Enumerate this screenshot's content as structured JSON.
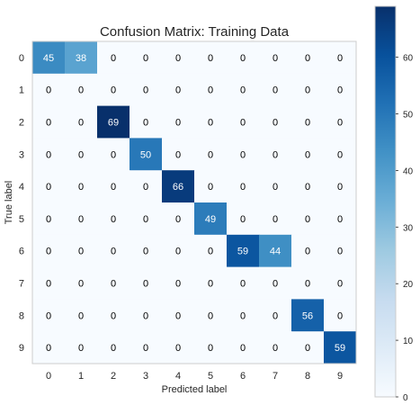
{
  "chart_data": {
    "type": "heatmap",
    "title": "Confusion Matrix: Training Data",
    "xlabel": "Predicted label",
    "ylabel": "True label",
    "x_categories": [
      "0",
      "1",
      "2",
      "3",
      "4",
      "5",
      "6",
      "7",
      "8",
      "9"
    ],
    "y_categories": [
      "0",
      "1",
      "2",
      "3",
      "4",
      "5",
      "6",
      "7",
      "8",
      "9"
    ],
    "values": [
      [
        45,
        38,
        0,
        0,
        0,
        0,
        0,
        0,
        0,
        0
      ],
      [
        0,
        0,
        0,
        0,
        0,
        0,
        0,
        0,
        0,
        0
      ],
      [
        0,
        0,
        69,
        0,
        0,
        0,
        0,
        0,
        0,
        0
      ],
      [
        0,
        0,
        0,
        50,
        0,
        0,
        0,
        0,
        0,
        0
      ],
      [
        0,
        0,
        0,
        0,
        66,
        0,
        0,
        0,
        0,
        0
      ],
      [
        0,
        0,
        0,
        0,
        0,
        49,
        0,
        0,
        0,
        0
      ],
      [
        0,
        0,
        0,
        0,
        0,
        0,
        59,
        44,
        0,
        0
      ],
      [
        0,
        0,
        0,
        0,
        0,
        0,
        0,
        0,
        0,
        0
      ],
      [
        0,
        0,
        0,
        0,
        0,
        0,
        0,
        0,
        56,
        0
      ],
      [
        0,
        0,
        0,
        0,
        0,
        0,
        0,
        0,
        0,
        59
      ]
    ],
    "colorbar": {
      "ticks": [
        "0",
        "10",
        "20",
        "30",
        "40",
        "50",
        "60"
      ],
      "range": [
        0,
        69
      ],
      "colormap": "Blues"
    },
    "grid": false
  }
}
